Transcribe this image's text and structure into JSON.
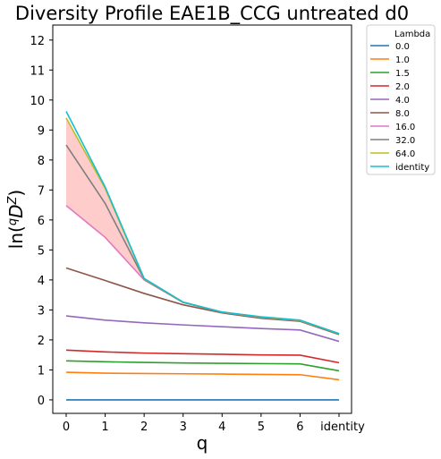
{
  "chart_data": {
    "type": "line",
    "title": "Diversity Profile EAE1B_CCG untreated d0",
    "xlabel": "q",
    "ylabel": "ln(qDZ)",
    "ylabel_parts": {
      "base": "ln(",
      "pre_sup": "q",
      "main": "D",
      "post_sup": "Z",
      "close": ")"
    },
    "categories": [
      "0",
      "1",
      "2",
      "3",
      "4",
      "5",
      "6",
      "identity"
    ],
    "x_ticks": [
      "0",
      "1",
      "2",
      "3",
      "4",
      "5",
      "6",
      "identity"
    ],
    "y_ticks": [
      "0",
      "1",
      "2",
      "3",
      "4",
      "5",
      "6",
      "7",
      "8",
      "9",
      "10",
      "11",
      "12"
    ],
    "ylim": [
      -0.45,
      12.5
    ],
    "grid": false,
    "legend": {
      "title": "Lambda",
      "placement": "outside-top-right"
    },
    "band": {
      "between_series": [
        "16.0",
        "64.0"
      ],
      "x_range": [
        0,
        2
      ],
      "color": "#ffcccc"
    },
    "series": [
      {
        "name": "0.0",
        "color": "#1f77b4",
        "values": [
          0.0,
          0.0,
          0.0,
          0.0,
          0.0,
          0.0,
          0.0,
          0.0
        ]
      },
      {
        "name": "1.0",
        "color": "#ff7f0e",
        "values": [
          0.92,
          0.89,
          0.88,
          0.87,
          0.86,
          0.85,
          0.84,
          0.67
        ]
      },
      {
        "name": "1.5",
        "color": "#2ca02c",
        "values": [
          1.3,
          1.27,
          1.25,
          1.23,
          1.22,
          1.21,
          1.2,
          0.97
        ]
      },
      {
        "name": "2.0",
        "color": "#d62728",
        "values": [
          1.66,
          1.6,
          1.56,
          1.54,
          1.52,
          1.5,
          1.49,
          1.24
        ]
      },
      {
        "name": "4.0",
        "color": "#9467bd",
        "values": [
          2.8,
          2.66,
          2.57,
          2.5,
          2.44,
          2.38,
          2.33,
          1.95
        ]
      },
      {
        "name": "8.0",
        "color": "#8c564b",
        "values": [
          4.4,
          3.98,
          3.55,
          3.17,
          2.9,
          2.72,
          2.62,
          2.18
        ]
      },
      {
        "name": "16.0",
        "color": "#e377c2",
        "values": [
          6.48,
          5.42,
          4.0,
          3.25,
          2.92,
          2.75,
          2.64,
          2.2
        ]
      },
      {
        "name": "32.0",
        "color": "#7f7f7f",
        "values": [
          8.5,
          6.55,
          4.02,
          3.25,
          2.92,
          2.75,
          2.64,
          2.2
        ]
      },
      {
        "name": "64.0",
        "color": "#bcbd22",
        "values": [
          9.4,
          7.05,
          4.04,
          3.26,
          2.93,
          2.76,
          2.65,
          2.21
        ]
      },
      {
        "name": "identity",
        "color": "#17becf",
        "values": [
          9.62,
          7.1,
          4.05,
          3.26,
          2.93,
          2.77,
          2.66,
          2.21
        ]
      }
    ]
  }
}
